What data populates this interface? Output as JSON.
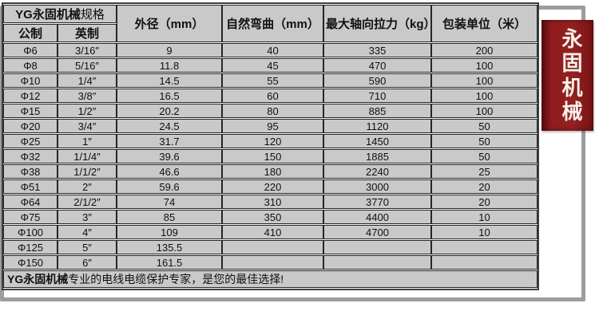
{
  "table": {
    "title_bold": "YG永固机械",
    "title_rest": "规格",
    "columns": {
      "metric": "公制",
      "imperial": "英制",
      "outer_diameter": "外径（mm）",
      "natural_bend": "自然弯曲（mm）",
      "max_axial_pull": "最大轴向拉力（kg）",
      "packing_unit": "包装单位（米）"
    },
    "rows": [
      [
        "Φ6",
        "3/16″",
        "9",
        "40",
        "335",
        "200"
      ],
      [
        "Φ8",
        "5/16″",
        "11.8",
        "45",
        "470",
        "100"
      ],
      [
        "Φ10",
        "1/4″",
        "14.5",
        "55",
        "590",
        "100"
      ],
      [
        "Φ12",
        "3/8″",
        "16.5",
        "60",
        "710",
        "100"
      ],
      [
        "Φ15",
        "1/2″",
        "20.2",
        "80",
        "885",
        "100"
      ],
      [
        "Φ20",
        "3/4″",
        "24.5",
        "95",
        "1120",
        "50"
      ],
      [
        "Φ25",
        "1″",
        "31.7",
        "120",
        "1450",
        "50"
      ],
      [
        "Φ32",
        "1/1/4″",
        "39.6",
        "150",
        "1885",
        "50"
      ],
      [
        "Φ38",
        "1/1/2″",
        "46.6",
        "180",
        "2240",
        "25"
      ],
      [
        "Φ51",
        "2″",
        "59.6",
        "220",
        "3000",
        "20"
      ],
      [
        "Φ64",
        "2/1/2″",
        "74",
        "310",
        "3770",
        "20"
      ],
      [
        "Φ75",
        "3″",
        "85",
        "350",
        "4400",
        "10"
      ],
      [
        "Φ100",
        "4″",
        "109",
        "410",
        "4700",
        "10"
      ],
      [
        "Φ125",
        "5″",
        "135.5",
        "",
        "",
        ""
      ],
      [
        "Φ150",
        "6″",
        "161.5",
        "",
        "",
        ""
      ]
    ]
  },
  "footer": {
    "bold": "YG永固机械",
    "rest": "专业的电线电缆保护专家，是您的最佳选择!"
  },
  "banner": {
    "text": "永固机械",
    "chars": [
      "永",
      "固",
      "机",
      "械"
    ],
    "bg_color": "#8e1c1e",
    "text_color": "#f5f1ea"
  },
  "colors": {
    "cell_bg": "#c9c9c9",
    "grid_line": "#262626",
    "table_border": "#3f3f3f",
    "frame_gray": "#9d9d9d"
  }
}
